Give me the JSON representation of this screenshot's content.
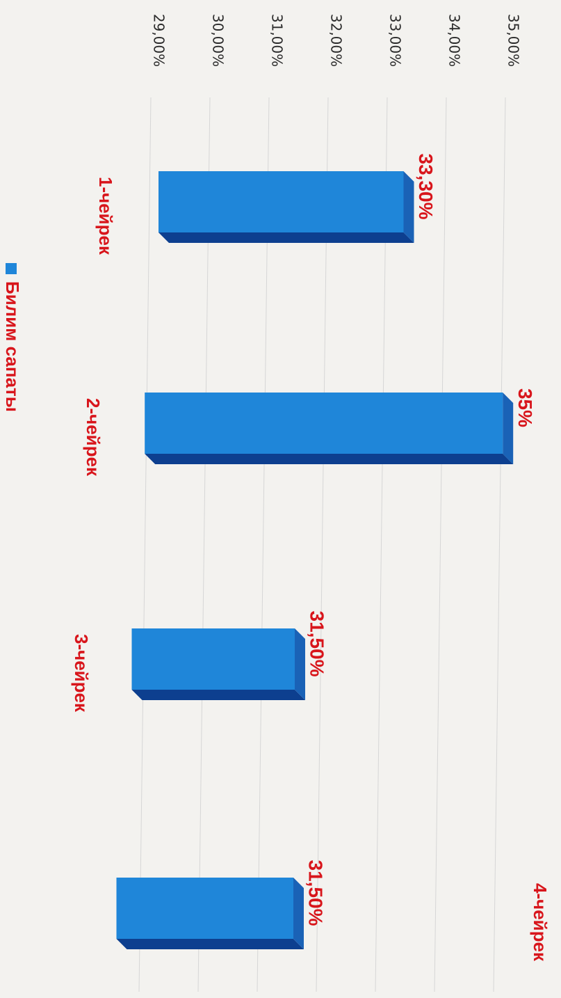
{
  "chart_data": {
    "type": "bar",
    "orientation": "rotated-90-clockwise",
    "categories": [
      "1-чейрек",
      "2-чейрек",
      "3-чейрек",
      "4-чейрек"
    ],
    "series": [
      {
        "name": "Билим сапаты",
        "values": [
          33.3,
          35.0,
          31.5,
          31.5
        ],
        "data_labels": [
          "33,30%",
          "35%",
          "31,50%",
          "31,50%"
        ]
      }
    ],
    "y_ticks": [
      "29,00%",
      "30,00%",
      "31,00%",
      "32,00%",
      "33,00%",
      "34,00%",
      "35,00%"
    ],
    "y_tick_values": [
      29,
      30,
      31,
      32,
      33,
      34,
      35
    ],
    "ylim": [
      29,
      35
    ],
    "grid": true,
    "legend": "bottom",
    "bar_style": "3d",
    "colors": {
      "bar_front": "#1f86d9",
      "bar_top": "#1a62b6",
      "bar_side": "#0d3f8f",
      "label": "#d8151b",
      "grid": "#d6d6d6"
    }
  }
}
